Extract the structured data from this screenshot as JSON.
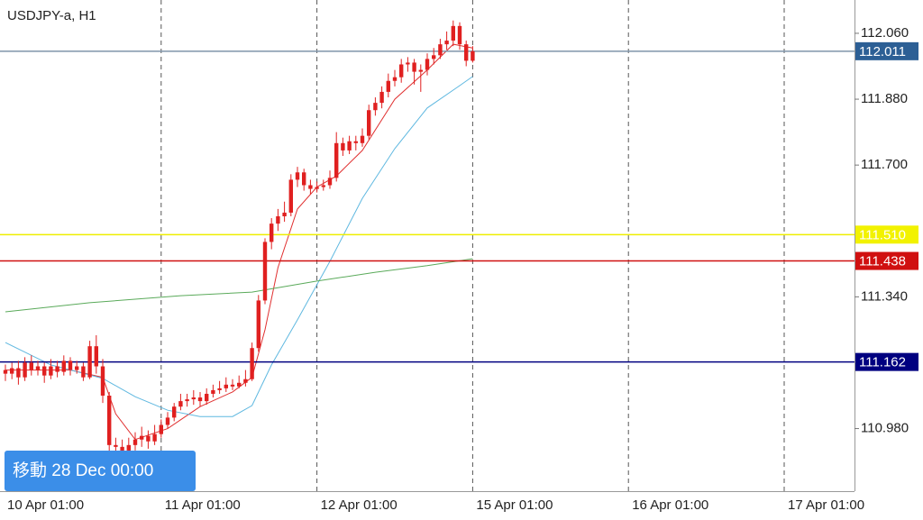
{
  "chart_data": {
    "type": "candlestick",
    "title": "USDJPY-a, H1",
    "overlay_label": "移動 28 Dec 00:00",
    "candle_color": "#e02020",
    "x_labels": [
      "10 Apr 01:00",
      "11 Apr 01:00",
      "12 Apr 01:00",
      "15 Apr 01:00",
      "16 Apr 01:00",
      "17 Apr 01:00"
    ],
    "ylim": [
      110.809,
      112.151
    ],
    "yticks": [
      {
        "value": 112.06,
        "label": "112.060"
      },
      {
        "value": 111.88,
        "label": "111.880"
      },
      {
        "value": 111.7,
        "label": "111.700"
      },
      {
        "value": 111.34,
        "label": "111.340"
      },
      {
        "value": 110.98,
        "label": "110.980"
      }
    ],
    "open": [
      111.14,
      111.13,
      111.145,
      111.12,
      111.16,
      111.14,
      111.15,
      111.125,
      111.15,
      111.135,
      111.165,
      111.14,
      111.15,
      111.12,
      111.205,
      111.15,
      111.07,
      110.935,
      110.93,
      110.92,
      110.935,
      110.95,
      110.96,
      110.945,
      110.965,
      110.99,
      111.01,
      111.04,
      111.055,
      111.06,
      111.065,
      111.055,
      111.075,
      111.085,
      111.09,
      111.1,
      111.095,
      111.105,
      111.115,
      111.2,
      111.33,
      111.49,
      111.54,
      111.56,
      111.57,
      111.66,
      111.68,
      111.645,
      111.635,
      111.64,
      111.645,
      111.665,
      111.76,
      111.74,
      111.765,
      111.76,
      111.78,
      111.85,
      111.87,
      111.9,
      111.93,
      111.94,
      111.975,
      111.98,
      111.955,
      111.96,
      111.99,
      112.0,
      112.03,
      112.04,
      112.08,
      112.03,
      111.985
    ],
    "high": [
      111.155,
      111.16,
      111.165,
      111.175,
      111.18,
      111.165,
      111.16,
      111.17,
      111.165,
      111.18,
      111.175,
      111.165,
      111.16,
      111.22,
      111.235,
      111.17,
      111.08,
      110.955,
      110.95,
      110.955,
      110.97,
      110.985,
      110.975,
      110.99,
      111.005,
      111.025,
      111.05,
      111.075,
      111.075,
      111.085,
      111.08,
      111.09,
      111.1,
      111.11,
      111.12,
      111.115,
      111.125,
      111.14,
      111.215,
      111.345,
      111.5,
      111.555,
      111.58,
      111.6,
      111.675,
      111.695,
      111.69,
      111.66,
      111.655,
      111.66,
      111.685,
      111.79,
      111.775,
      111.78,
      111.78,
      111.8,
      111.865,
      111.885,
      111.915,
      111.95,
      111.96,
      111.99,
      111.995,
      111.99,
      111.975,
      112.005,
      112.02,
      112.045,
      112.065,
      112.095,
      112.09,
      112.04,
      112.025
    ],
    "low": [
      111.11,
      111.115,
      111.1,
      111.11,
      111.125,
      111.125,
      111.105,
      111.115,
      111.12,
      111.125,
      111.125,
      111.13,
      111.11,
      111.115,
      111.13,
      111.05,
      110.91,
      110.9,
      110.89,
      110.9,
      110.92,
      110.93,
      110.925,
      110.935,
      110.955,
      110.98,
      111.0,
      111.03,
      111.04,
      111.045,
      111.04,
      111.045,
      111.065,
      111.075,
      111.08,
      111.085,
      111.09,
      111.095,
      111.11,
      111.19,
      111.32,
      111.47,
      111.52,
      111.545,
      111.56,
      111.64,
      111.63,
      111.62,
      111.625,
      111.63,
      111.635,
      111.655,
      111.725,
      111.73,
      111.74,
      111.75,
      111.77,
      111.835,
      111.855,
      111.885,
      111.915,
      111.925,
      111.955,
      111.92,
      111.9,
      111.945,
      111.975,
      111.99,
      112.015,
      112.025,
      112.015,
      111.97,
      111.98
    ],
    "close": [
      111.13,
      111.145,
      111.12,
      111.16,
      111.14,
      111.15,
      111.125,
      111.15,
      111.135,
      111.165,
      111.14,
      111.15,
      111.12,
      111.205,
      111.15,
      111.07,
      110.935,
      110.93,
      110.92,
      110.935,
      110.95,
      110.96,
      110.945,
      110.965,
      110.99,
      111.01,
      111.04,
      111.055,
      111.06,
      111.065,
      111.055,
      111.075,
      111.085,
      111.09,
      111.1,
      111.095,
      111.105,
      111.115,
      111.2,
      111.33,
      111.49,
      111.54,
      111.56,
      111.57,
      111.66,
      111.68,
      111.645,
      111.635,
      111.64,
      111.645,
      111.665,
      111.76,
      111.74,
      111.765,
      111.76,
      111.78,
      111.85,
      111.87,
      111.9,
      111.93,
      111.94,
      111.975,
      111.98,
      111.955,
      111.96,
      111.99,
      112.0,
      112.03,
      112.04,
      112.08,
      112.03,
      111.985,
      112.011
    ],
    "series": [
      {
        "color": "#e03030",
        "x": [
          0,
          10,
          15,
          17,
          20,
          25,
          30,
          35,
          38,
          40,
          42,
          45,
          48,
          51,
          55,
          60,
          65,
          69,
          72
        ],
        "values": [
          111.14,
          111.14,
          111.12,
          111.02,
          110.95,
          110.98,
          111.04,
          111.08,
          111.12,
          111.25,
          111.42,
          111.58,
          111.64,
          111.67,
          111.74,
          111.88,
          111.96,
          112.03,
          112.02
        ]
      },
      {
        "color": "#5fb8e0",
        "x": [
          0,
          7,
          15,
          20,
          25,
          30,
          35,
          38,
          41,
          45,
          50,
          55,
          60,
          65,
          70,
          72
        ],
        "values": [
          111.215,
          111.154,
          111.117,
          111.067,
          111.03,
          111.013,
          111.013,
          111.043,
          111.154,
          111.277,
          111.437,
          111.609,
          111.745,
          111.856,
          111.917,
          111.942
        ]
      },
      {
        "color": "#5aaa5a",
        "x": [
          0,
          13,
          27,
          38,
          48,
          57,
          65,
          72
        ],
        "values": [
          111.299,
          111.324,
          111.343,
          111.353,
          111.383,
          111.407,
          111.425,
          111.444
        ]
      }
    ],
    "levels": [
      {
        "value": 112.011,
        "label": "112.011",
        "color": "#7f95aa",
        "box": "#2c5f95"
      },
      {
        "value": 111.51,
        "label": "111.510",
        "color": "#eeee00",
        "box": "#f2f200"
      },
      {
        "value": 111.438,
        "label": "111.438",
        "color": "#d01010",
        "box": "#d01010"
      },
      {
        "value": 111.162,
        "label": "111.162",
        "color": "#000080",
        "box": "#000080"
      }
    ]
  }
}
